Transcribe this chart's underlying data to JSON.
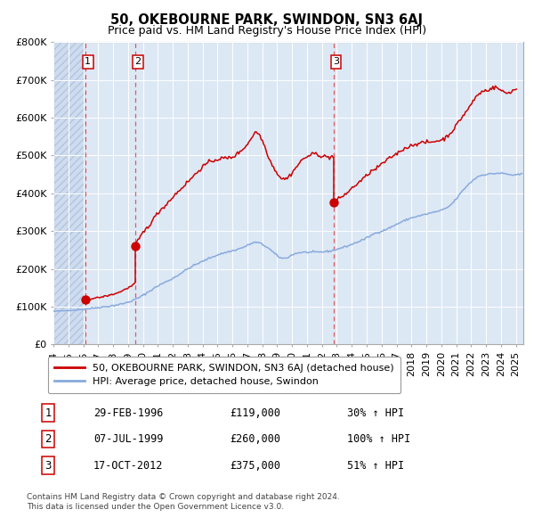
{
  "title": "50, OKEBOURNE PARK, SWINDON, SN3 6AJ",
  "subtitle": "Price paid vs. HM Land Registry's House Price Index (HPI)",
  "legend_line1": "50, OKEBOURNE PARK, SWINDON, SN3 6AJ (detached house)",
  "legend_line2": "HPI: Average price, detached house, Swindon",
  "footer1": "Contains HM Land Registry data © Crown copyright and database right 2024.",
  "footer2": "This data is licensed under the Open Government Licence v3.0.",
  "transactions": [
    {
      "num": 1,
      "date": "29-FEB-1996",
      "price": 119000,
      "pct": "30%",
      "date_dec": 1996.16
    },
    {
      "num": 2,
      "date": "07-JUL-1999",
      "price": 260000,
      "pct": "100%",
      "date_dec": 1999.51
    },
    {
      "num": 3,
      "date": "17-OCT-2012",
      "price": 375000,
      "pct": "51%",
      "date_dec": 2012.79
    }
  ],
  "hpi_color": "#88aadd",
  "price_color": "#cc0000",
  "marker_color": "#cc0000",
  "dashed_color": "#dd4444",
  "bg_chart": "#dde8f5",
  "bg_figure": "#ffffff",
  "grid_color": "#ffffff",
  "label_box_color": "#cc0000",
  "ylim": [
    0,
    800000
  ],
  "yticks": [
    0,
    100000,
    200000,
    300000,
    400000,
    500000,
    600000,
    700000,
    800000
  ],
  "ytick_labels": [
    "£0",
    "£100K",
    "£200K",
    "£300K",
    "£400K",
    "£500K",
    "£600K",
    "£700K",
    "£800K"
  ],
  "xmin": 1994.0,
  "xmax": 2025.5,
  "hatch_end": 1996.16,
  "hpi_anchors": [
    [
      1994.0,
      88000
    ],
    [
      1995.0,
      90000
    ],
    [
      1996.0,
      93000
    ],
    [
      1997.0,
      98000
    ],
    [
      1998.0,
      103000
    ],
    [
      1999.0,
      112000
    ],
    [
      2000.0,
      130000
    ],
    [
      2001.0,
      155000
    ],
    [
      2002.0,
      175000
    ],
    [
      2003.0,
      200000
    ],
    [
      2004.0,
      220000
    ],
    [
      2005.0,
      237000
    ],
    [
      2006.0,
      248000
    ],
    [
      2007.0,
      262000
    ],
    [
      2007.5,
      270000
    ],
    [
      2008.0,
      265000
    ],
    [
      2008.5,
      252000
    ],
    [
      2009.0,
      235000
    ],
    [
      2009.5,
      228000
    ],
    [
      2010.0,
      237000
    ],
    [
      2010.5,
      243000
    ],
    [
      2011.0,
      244000
    ],
    [
      2011.5,
      244000
    ],
    [
      2012.0,
      245000
    ],
    [
      2012.5,
      247000
    ],
    [
      2013.0,
      252000
    ],
    [
      2013.5,
      258000
    ],
    [
      2014.0,
      265000
    ],
    [
      2014.5,
      273000
    ],
    [
      2015.0,
      282000
    ],
    [
      2015.5,
      293000
    ],
    [
      2016.0,
      300000
    ],
    [
      2016.5,
      308000
    ],
    [
      2017.0,
      318000
    ],
    [
      2017.5,
      327000
    ],
    [
      2018.0,
      335000
    ],
    [
      2018.5,
      340000
    ],
    [
      2019.0,
      345000
    ],
    [
      2019.5,
      350000
    ],
    [
      2020.0,
      355000
    ],
    [
      2020.5,
      365000
    ],
    [
      2021.0,
      385000
    ],
    [
      2021.5,
      410000
    ],
    [
      2022.0,
      430000
    ],
    [
      2022.5,
      445000
    ],
    [
      2023.0,
      450000
    ],
    [
      2023.5,
      452000
    ],
    [
      2024.0,
      453000
    ],
    [
      2024.5,
      450000
    ],
    [
      2025.0,
      448000
    ]
  ],
  "price_seg1": [
    [
      1996.16,
      119000
    ],
    [
      1996.5,
      121000
    ],
    [
      1997.0,
      124000
    ],
    [
      1997.5,
      128000
    ],
    [
      1998.0,
      133000
    ],
    [
      1998.5,
      140000
    ],
    [
      1999.0,
      150000
    ],
    [
      1999.4,
      160000
    ],
    [
      1999.51,
      165000
    ]
  ],
  "price_seg2": [
    [
      1999.51,
      260000
    ],
    [
      2000.0,
      295000
    ],
    [
      2000.5,
      320000
    ],
    [
      2001.0,
      348000
    ],
    [
      2001.5,
      368000
    ],
    [
      2002.0,
      390000
    ],
    [
      2002.5,
      410000
    ],
    [
      2003.0,
      430000
    ],
    [
      2003.5,
      450000
    ],
    [
      2004.0,
      470000
    ],
    [
      2004.5,
      483000
    ],
    [
      2005.0,
      490000
    ],
    [
      2005.5,
      493000
    ],
    [
      2006.0,
      496000
    ],
    [
      2006.5,
      510000
    ],
    [
      2007.0,
      530000
    ],
    [
      2007.3,
      548000
    ],
    [
      2007.5,
      560000
    ],
    [
      2007.8,
      555000
    ],
    [
      2008.0,
      540000
    ],
    [
      2008.3,
      510000
    ],
    [
      2008.6,
      480000
    ],
    [
      2008.9,
      460000
    ],
    [
      2009.2,
      443000
    ],
    [
      2009.5,
      438000
    ],
    [
      2009.8,
      445000
    ],
    [
      2010.0,
      455000
    ],
    [
      2010.3,
      470000
    ],
    [
      2010.6,
      485000
    ],
    [
      2010.9,
      495000
    ],
    [
      2011.2,
      500000
    ],
    [
      2011.5,
      505000
    ],
    [
      2011.8,
      502000
    ],
    [
      2012.0,
      498000
    ],
    [
      2012.3,
      497000
    ],
    [
      2012.5,
      495000
    ],
    [
      2012.7,
      498000
    ],
    [
      2012.79,
      498000
    ]
  ],
  "price_seg3": [
    [
      2012.79,
      375000
    ],
    [
      2013.0,
      382000
    ],
    [
      2013.3,
      390000
    ],
    [
      2013.5,
      396000
    ],
    [
      2013.8,
      405000
    ],
    [
      2014.0,
      413000
    ],
    [
      2014.3,
      423000
    ],
    [
      2014.6,
      433000
    ],
    [
      2014.9,
      443000
    ],
    [
      2015.2,
      455000
    ],
    [
      2015.5,
      462000
    ],
    [
      2015.8,
      470000
    ],
    [
      2016.0,
      478000
    ],
    [
      2016.3,
      485000
    ],
    [
      2016.6,
      495000
    ],
    [
      2016.9,
      502000
    ],
    [
      2017.2,
      510000
    ],
    [
      2017.5,
      518000
    ],
    [
      2017.8,
      523000
    ],
    [
      2018.1,
      528000
    ],
    [
      2018.4,
      532000
    ],
    [
      2018.7,
      533000
    ],
    [
      2019.0,
      535000
    ],
    [
      2019.3,
      535000
    ],
    [
      2019.6,
      538000
    ],
    [
      2019.9,
      540000
    ],
    [
      2020.2,
      545000
    ],
    [
      2020.5,
      555000
    ],
    [
      2020.8,
      568000
    ],
    [
      2021.1,
      585000
    ],
    [
      2021.4,
      602000
    ],
    [
      2021.7,
      618000
    ],
    [
      2022.0,
      635000
    ],
    [
      2022.2,
      648000
    ],
    [
      2022.4,
      658000
    ],
    [
      2022.6,
      665000
    ],
    [
      2022.8,
      670000
    ],
    [
      2023.0,
      672000
    ],
    [
      2023.2,
      675000
    ],
    [
      2023.4,
      678000
    ],
    [
      2023.6,
      680000
    ],
    [
      2023.8,
      678000
    ],
    [
      2024.0,
      672000
    ],
    [
      2024.2,
      668000
    ],
    [
      2024.4,
      665000
    ],
    [
      2024.6,
      668000
    ],
    [
      2024.8,
      672000
    ],
    [
      2025.0,
      675000
    ]
  ]
}
